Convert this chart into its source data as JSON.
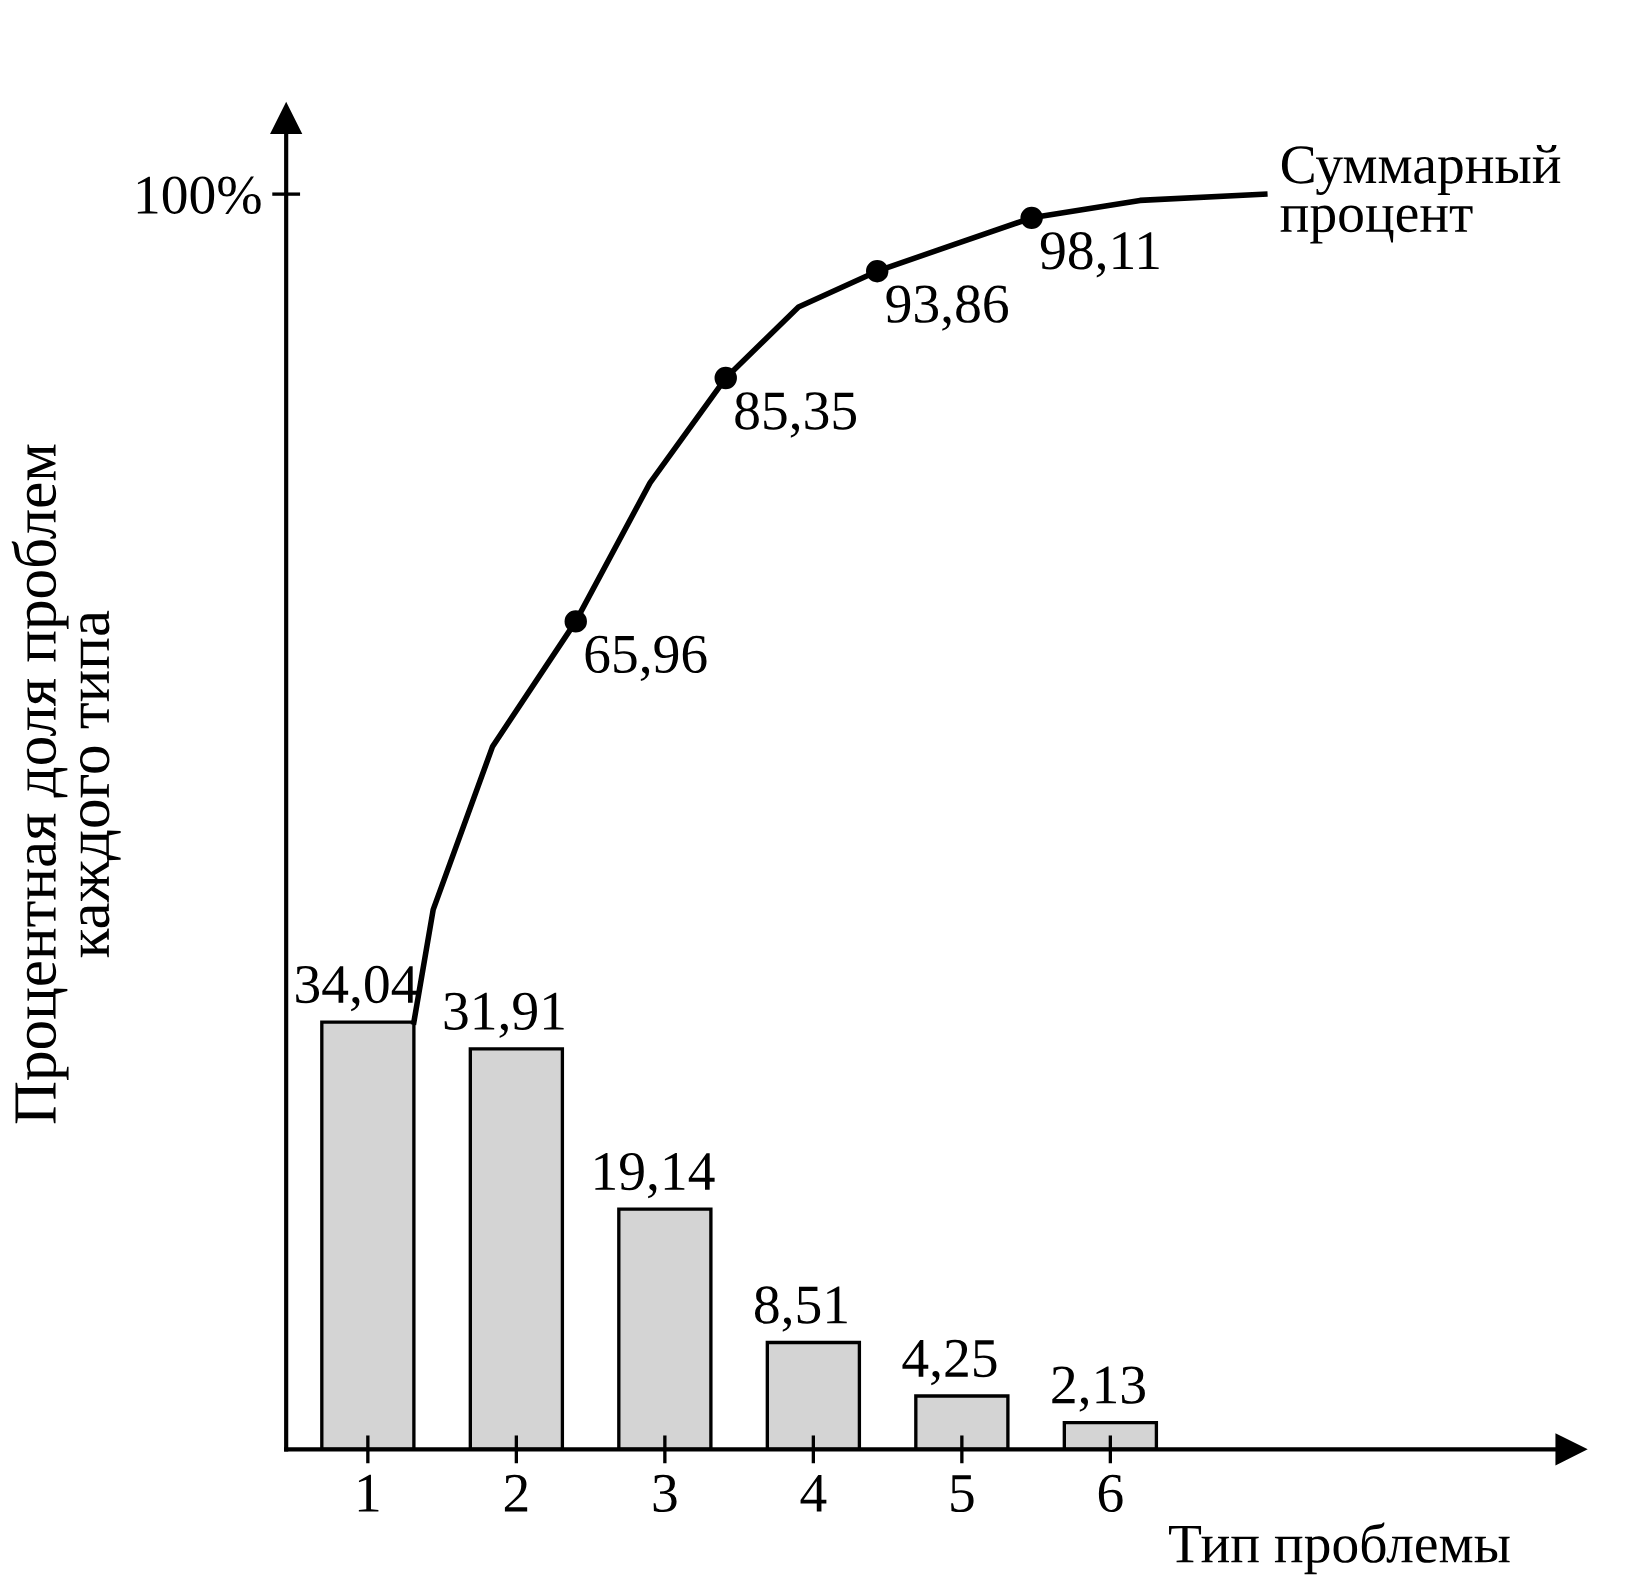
{
  "chart_data": {
    "type": "bar",
    "xlabel": "Тип проблемы",
    "ylabel": "Процентная доля проблем\nкаждого типа",
    "xlim": [
      0.45,
      9.1
    ],
    "xticks": [
      1,
      2,
      3,
      4,
      5,
      6
    ],
    "ylim": [
      0,
      106
    ],
    "yticks": [
      {
        "value": 100,
        "label": "100%"
      }
    ],
    "series": [
      {
        "x": [
          1,
          2,
          3,
          4,
          5,
          6
        ],
        "values": [
          34.04,
          31.91,
          19.14,
          8.51,
          4.25,
          2.13
        ],
        "color": "#d4d4d4",
        "value_labels": [
          "34,04",
          "31,91",
          "19,14",
          "8,51",
          "4,25",
          "2,13"
        ]
      },
      {
        "type": "line",
        "name": "Суммарный\nпроцент",
        "x": [
          1.31,
          1.44,
          1.84,
          2.4,
          2.9,
          3.41,
          3.9,
          4.43,
          4.95,
          5.47,
          6.2,
          7.04
        ],
        "values": [
          34.04,
          43,
          56,
          65.96,
          77,
          85.35,
          91,
          93.86,
          96,
          98.11,
          99.5,
          100
        ],
        "color": "#000000"
      },
      {
        "type": "scatter",
        "x": [
          2.4,
          3.41,
          4.43,
          5.47
        ],
        "values": [
          65.96,
          85.35,
          93.86,
          98.11
        ],
        "color": "#000000",
        "marker": "circle",
        "value_labels": [
          "65,96",
          "85,35",
          "93,86",
          "98,11"
        ]
      }
    ]
  }
}
